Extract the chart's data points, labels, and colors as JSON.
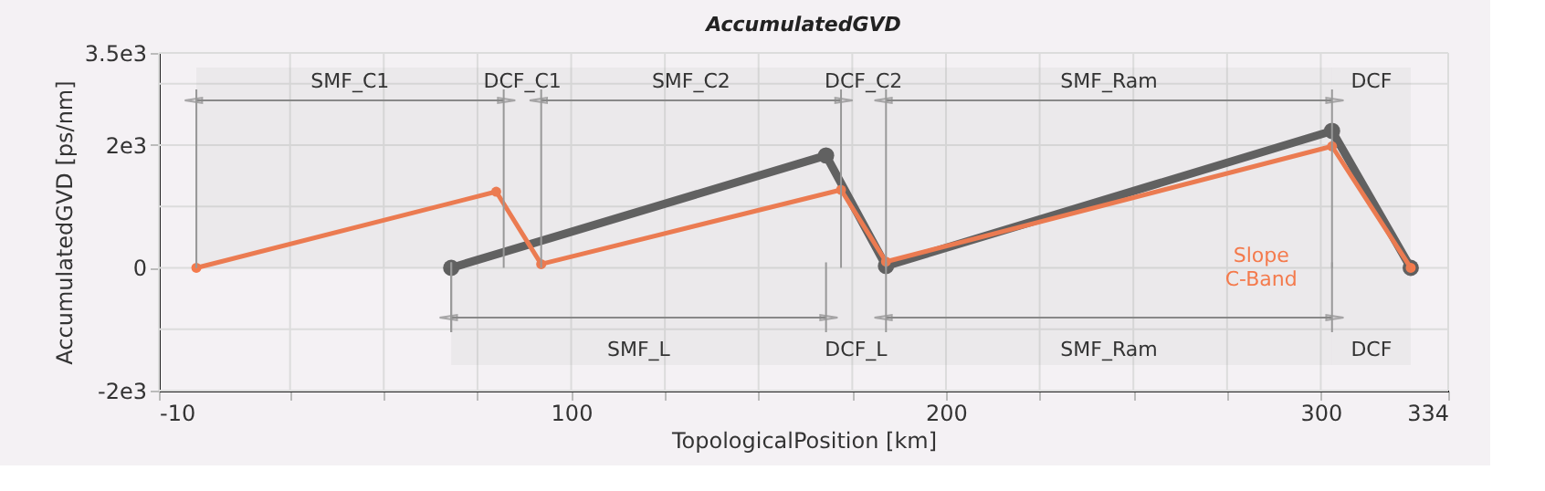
{
  "chart_data": {
    "type": "line",
    "title": "AccumulatedGVD",
    "xlabel": "TopologicalPosition [km]",
    "ylabel": "AccumulatedGVD [ps/nm]",
    "series": [
      {
        "color": "#f47a4c",
        "x": [
          0,
          80,
          92,
          172,
          184,
          303,
          324
        ],
        "values": [
          0,
          1240,
          60,
          1270,
          100,
          1980,
          0
        ]
      },
      {
        "color": "#5e5e5e",
        "x": [
          68,
          168,
          184,
          303,
          324
        ],
        "values": [
          0,
          1830,
          30,
          2230,
          0
        ]
      }
    ],
    "xlim": [
      -10,
      334
    ],
    "xticks": [
      -10,
      {
        "value": 25,
        "label": null
      },
      {
        "value": 50,
        "label": null
      },
      {
        "value": 75,
        "label": null
      },
      100,
      {
        "value": 125,
        "label": null
      },
      {
        "value": 150,
        "label": null
      },
      {
        "value": 175,
        "label": null
      },
      200,
      {
        "value": 225,
        "label": null
      },
      {
        "value": 250,
        "label": null
      },
      {
        "value": 275,
        "label": null
      },
      300,
      334
    ],
    "ylim": [
      -2000,
      3500
    ],
    "yticks": [
      {
        "value": -2000,
        "label": "-2e3"
      },
      {
        "value": -1000,
        "label": null
      },
      0,
      {
        "value": 1000,
        "label": null
      },
      {
        "value": 2000,
        "label": "2e3"
      },
      {
        "value": 3000,
        "label": null
      },
      {
        "value": 3500,
        "label": "3.5e3"
      }
    ],
    "bands": [
      {
        "axis": "x",
        "from": 0,
        "to": 82,
        "label": "SMF_C1"
      },
      {
        "axis": "x",
        "from": 82,
        "to": 92,
        "label": "DCF_C1"
      },
      {
        "axis": "x",
        "from": 92,
        "to": 172,
        "label": "SMF_C2"
      },
      {
        "axis": "x",
        "from": 172,
        "to": 184,
        "label": "DCF_C2"
      },
      {
        "axis": "x",
        "from": 184,
        "to": 303,
        "label": "SMF_Ram"
      },
      {
        "axis": "x",
        "from": 303,
        "to": 324,
        "label": "DCF"
      },
      {
        "axis": "x",
        "from": 68,
        "to": 168,
        "label": "SMF_L"
      },
      {
        "axis": "x",
        "from": 168,
        "to": 184,
        "label": "DCF_L"
      },
      {
        "axis": "x",
        "from": 184,
        "to": 303,
        "label": "SMF_Ram"
      },
      {
        "axis": "x",
        "from": 303,
        "to": 324,
        "label": "DCF"
      }
    ],
    "annotations": [
      "Slope C-Band"
    ],
    "ref_lines": [
      {
        "axis": "x",
        "value": 0,
        "color": "#999999"
      },
      {
        "axis": "x",
        "value": 68,
        "color": "#999999"
      }
    ],
    "marker": "circle",
    "line_style": "solid",
    "grid": true
  }
}
